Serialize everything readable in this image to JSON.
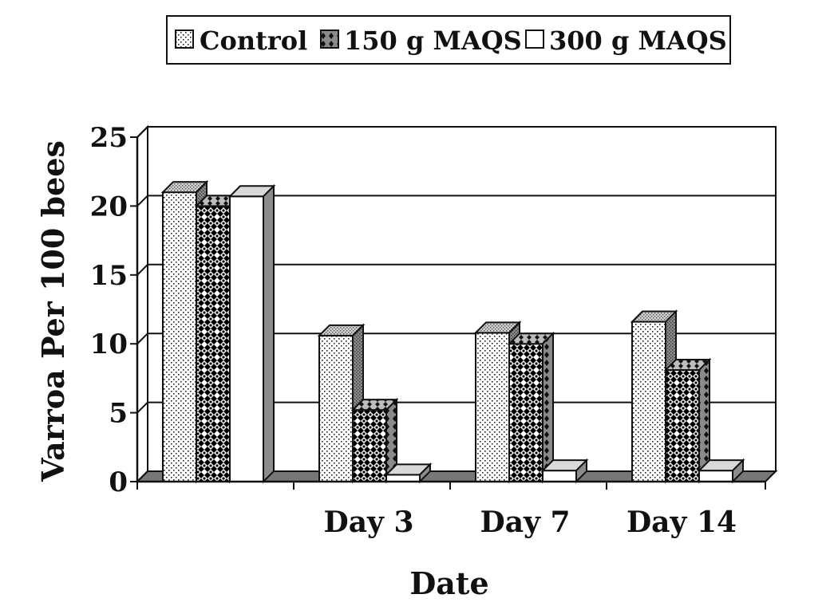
{
  "chart_data": {
    "type": "bar",
    "title": "",
    "xlabel": "Date",
    "ylabel": "Varroa Per 100 bees",
    "categories": [
      "",
      "Day 3",
      "Day 7",
      "Day 14"
    ],
    "series": [
      {
        "name": "Control",
        "pattern": "dots",
        "values": [
          21,
          10.6,
          10.8,
          11.6
        ]
      },
      {
        "name": "150 g MAQS",
        "pattern": "checker",
        "values": [
          20,
          5.2,
          10,
          8.1
        ]
      },
      {
        "name": "300 g MAQS",
        "pattern": "white",
        "values": [
          20.7,
          0.5,
          0.8,
          0.8
        ]
      }
    ],
    "yticks": [
      "0",
      "5",
      "10",
      "15",
      "20",
      "25"
    ],
    "ylim": [
      0,
      25
    ],
    "grid": true,
    "legend_position": "top-center",
    "colors": {
      "ink": "#111111",
      "side": "#8c8c8c",
      "floor": "#777777",
      "grid": "#111111"
    }
  }
}
